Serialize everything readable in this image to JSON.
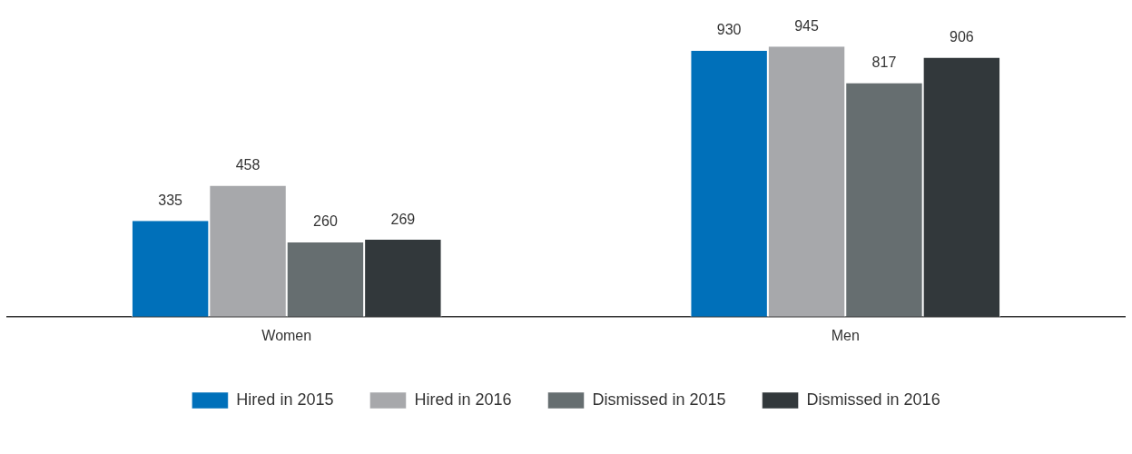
{
  "chart_data": {
    "type": "bar",
    "categories": [
      "Women",
      "Men"
    ],
    "series": [
      {
        "name": "Hired in 2015",
        "color": "#0070ba",
        "values": [
          335,
          930
        ]
      },
      {
        "name": "Hired in 2016",
        "color": "#a7a8ab",
        "values": [
          458,
          945
        ]
      },
      {
        "name": "Dismissed in 2015",
        "color": "#666e70",
        "values": [
          260,
          817
        ]
      },
      {
        "name": "Dismissed in 2016",
        "color": "#32383b",
        "values": [
          269,
          906
        ]
      }
    ],
    "data_labels": true,
    "grid": false,
    "legend": "bottom"
  }
}
